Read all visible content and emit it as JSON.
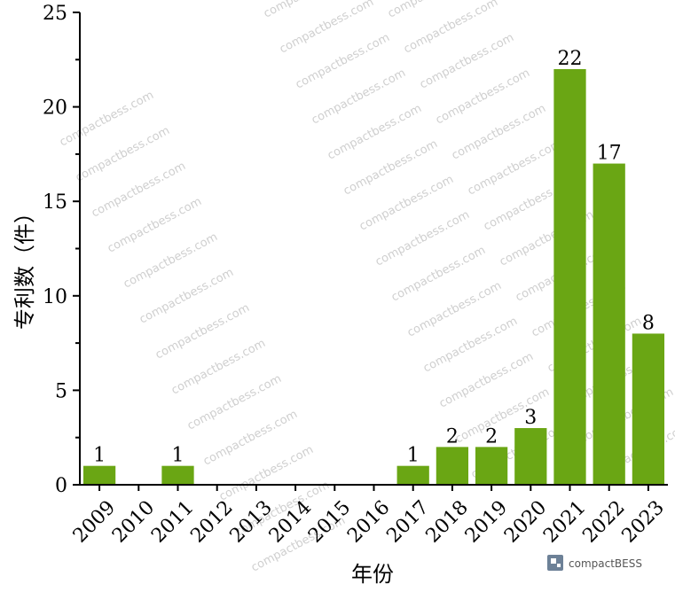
{
  "chart_data": {
    "type": "bar",
    "categories": [
      "2009",
      "2010",
      "2011",
      "2012",
      "2013",
      "2014",
      "2015",
      "2016",
      "2017",
      "2018",
      "2019",
      "2020",
      "2021",
      "2022",
      "2023"
    ],
    "values": [
      1,
      0,
      1,
      0,
      0,
      0,
      0,
      0,
      1,
      2,
      2,
      3,
      22,
      17,
      8
    ],
    "data_labels": [
      "1",
      "",
      "1",
      "",
      "",
      "",
      "",
      "",
      "1",
      "2",
      "2",
      "3",
      "22",
      "17",
      "8"
    ],
    "xlabel": "年份",
    "ylabel": "专利数（件）",
    "ylim": [
      0,
      25
    ],
    "yticks": [
      0,
      5,
      10,
      15,
      20,
      25
    ],
    "grid": false,
    "bar_color": "#6aa614"
  },
  "watermark": {
    "text": "compactbess.com"
  },
  "logo": {
    "text": "compactBESS"
  }
}
